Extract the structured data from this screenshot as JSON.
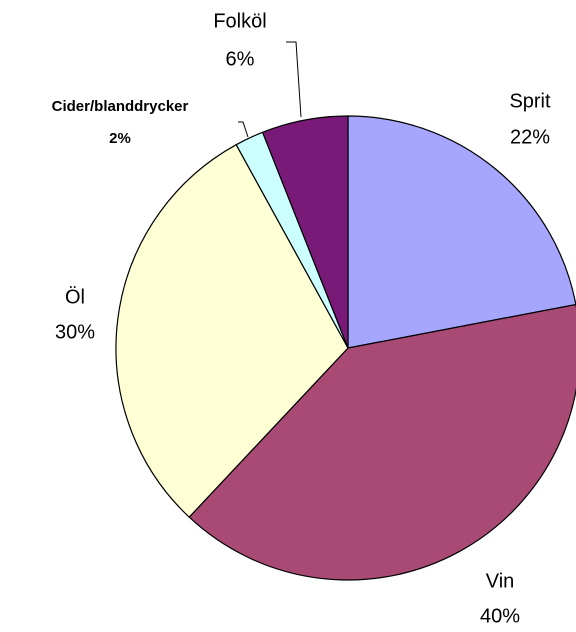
{
  "chart_data": {
    "type": "pie",
    "categories": [
      "Sprit",
      "Vin",
      "Öl",
      "Cider/blanddrycker",
      "Folköl"
    ],
    "values": [
      22,
      40,
      30,
      2,
      6
    ],
    "value_labels": [
      "22%",
      "40%",
      "30%",
      "2%",
      "6%"
    ],
    "colors": [
      "#a6a6ff",
      "#a84a74",
      "#ffffd6",
      "#ccffff",
      "#7a1a78"
    ]
  }
}
